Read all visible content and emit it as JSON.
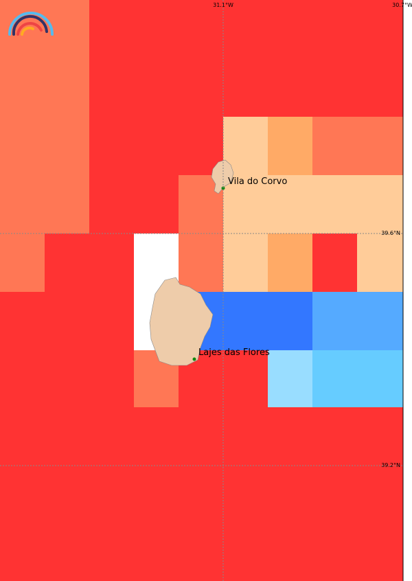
{
  "longitude_labels": [
    "31.1°W",
    "30.7°W"
  ],
  "latitude_labels": [
    "39.6°N",
    "39.2°N"
  ],
  "places": [
    {
      "label": "Vila do Corvo"
    },
    {
      "label": "Lajes das Flores"
    }
  ]
}
